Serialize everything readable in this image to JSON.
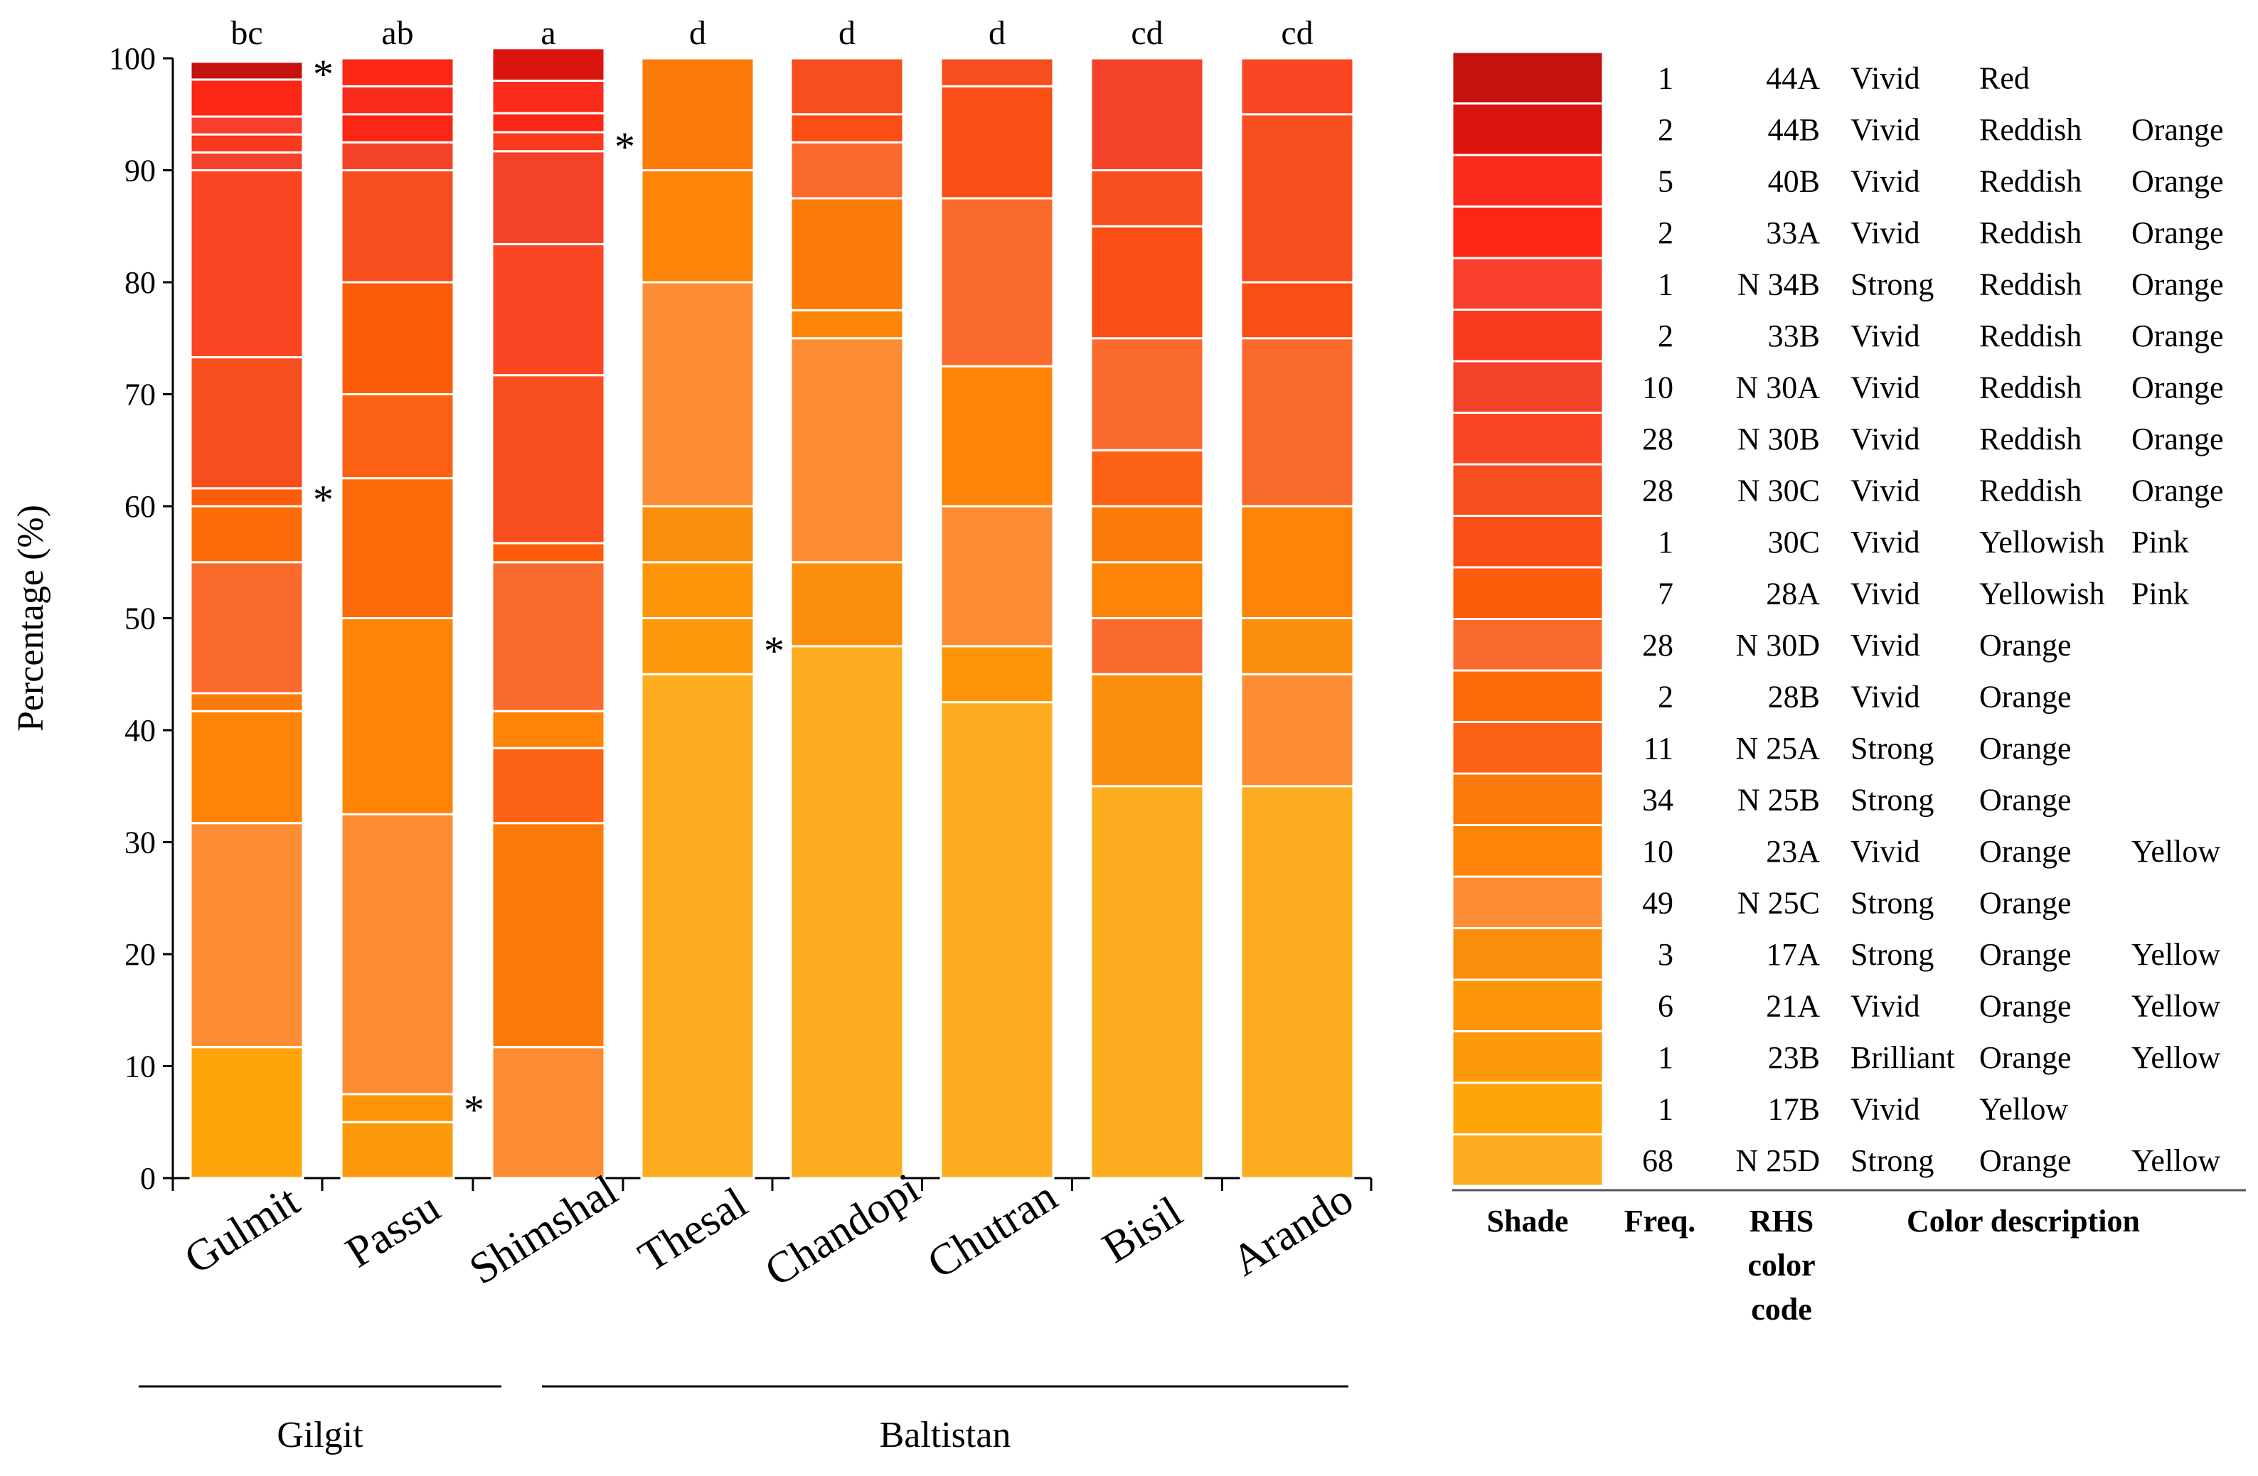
{
  "chart_data": {
    "type": "bar",
    "subtype": "stacked-100-percent",
    "ylabel": "Percentage (%)",
    "ylim": [
      0,
      100
    ],
    "yticks": [
      0,
      10,
      20,
      30,
      40,
      50,
      60,
      70,
      80,
      90,
      100
    ],
    "categories": [
      "Gulmit",
      "Passu",
      "Shimshal",
      "Thesal",
      "Chandopi",
      "Chutran",
      "Bisil",
      "Arando"
    ],
    "significance_letters": [
      "bc",
      "ab",
      "a",
      "d",
      "d",
      "d",
      "cd",
      "cd"
    ],
    "groups": [
      {
        "label": "Gilgit",
        "members": [
          "Gulmit",
          "Passu",
          "Shimshal"
        ]
      },
      {
        "label": "Baltistan",
        "members": [
          "Thesal",
          "Chandopi",
          "Chutran",
          "Bisil",
          "Arando"
        ]
      }
    ],
    "marker": "*",
    "starred_segments": [
      {
        "category": "Gulmit",
        "value_level": 99
      },
      {
        "category": "Gulmit",
        "value_level": 61
      },
      {
        "category": "Passu",
        "value_level": 6.5
      },
      {
        "category": "Shimshal",
        "value_level": 92.5
      },
      {
        "category": "Thesal",
        "value_level": 47.5
      }
    ],
    "bars": [
      {
        "category": "Gulmit",
        "segments": [
          {
            "shade": 20,
            "pct": 11.7
          },
          {
            "shade": 16,
            "pct": 20.0
          },
          {
            "shade": 15,
            "pct": 10.0
          },
          {
            "shade": 14,
            "pct": 1.6
          },
          {
            "shade": 11,
            "pct": 11.7
          },
          {
            "shade": 12,
            "pct": 5.0
          },
          {
            "shade": 10,
            "pct": 1.6
          },
          {
            "shade": 8,
            "pct": 11.7
          },
          {
            "shade": 7,
            "pct": 16.7
          },
          {
            "shade": 6,
            "pct": 1.6
          },
          {
            "shade": 5,
            "pct": 1.6
          },
          {
            "shade": 4,
            "pct": 1.6
          },
          {
            "shade": 3,
            "pct": 3.3
          },
          {
            "shade": 0,
            "pct": 1.6
          }
        ]
      },
      {
        "category": "Passu",
        "segments": [
          {
            "shade": 19,
            "pct": 5.0
          },
          {
            "shade": 18,
            "pct": 2.5
          },
          {
            "shade": 16,
            "pct": 25.0
          },
          {
            "shade": 15,
            "pct": 17.5
          },
          {
            "shade": 12,
            "pct": 12.5
          },
          {
            "shade": 13,
            "pct": 7.5
          },
          {
            "shade": 10,
            "pct": 10.0
          },
          {
            "shade": 8,
            "pct": 10.0
          },
          {
            "shade": 6,
            "pct": 2.5
          },
          {
            "shade": 3,
            "pct": 2.5
          },
          {
            "shade": 2,
            "pct": 2.5
          },
          {
            "shade": 3,
            "pct": 2.5
          }
        ]
      },
      {
        "category": "Shimshal",
        "segments": [
          {
            "shade": 16,
            "pct": 11.7
          },
          {
            "shade": 14,
            "pct": 20.0
          },
          {
            "shade": 13,
            "pct": 6.7
          },
          {
            "shade": 15,
            "pct": 3.3
          },
          {
            "shade": 11,
            "pct": 13.3
          },
          {
            "shade": 10,
            "pct": 1.7
          },
          {
            "shade": 8,
            "pct": 15.0
          },
          {
            "shade": 7,
            "pct": 11.7
          },
          {
            "shade": 6,
            "pct": 8.3
          },
          {
            "shade": 5,
            "pct": 1.7
          },
          {
            "shade": 3,
            "pct": 1.7
          },
          {
            "shade": 2,
            "pct": 2.9
          },
          {
            "shade": 1,
            "pct": 2.9
          }
        ]
      },
      {
        "category": "Thesal",
        "segments": [
          {
            "shade": 21,
            "pct": 45.0
          },
          {
            "shade": 19,
            "pct": 5.0
          },
          {
            "shade": 18,
            "pct": 5.0
          },
          {
            "shade": 17,
            "pct": 5.0
          },
          {
            "shade": 16,
            "pct": 20.0
          },
          {
            "shade": 15,
            "pct": 10.0
          },
          {
            "shade": 14,
            "pct": 10.0
          }
        ]
      },
      {
        "category": "Chandopi",
        "segments": [
          {
            "shade": 21,
            "pct": 47.5
          },
          {
            "shade": 17,
            "pct": 7.5
          },
          {
            "shade": 16,
            "pct": 20.0
          },
          {
            "shade": 15,
            "pct": 2.5
          },
          {
            "shade": 14,
            "pct": 10.0
          },
          {
            "shade": 11,
            "pct": 5.0
          },
          {
            "shade": 9,
            "pct": 2.5
          },
          {
            "shade": 8,
            "pct": 5.0
          }
        ]
      },
      {
        "category": "Chutran",
        "segments": [
          {
            "shade": 21,
            "pct": 42.5
          },
          {
            "shade": 18,
            "pct": 5.0
          },
          {
            "shade": 16,
            "pct": 12.5
          },
          {
            "shade": 15,
            "pct": 12.5
          },
          {
            "shade": 11,
            "pct": 15.0
          },
          {
            "shade": 9,
            "pct": 10.0
          },
          {
            "shade": 8,
            "pct": 2.5
          }
        ]
      },
      {
        "category": "Bisil",
        "segments": [
          {
            "shade": 21,
            "pct": 35.0
          },
          {
            "shade": 17,
            "pct": 10.0
          },
          {
            "shade": 11,
            "pct": 5.0
          },
          {
            "shade": 15,
            "pct": 5.0
          },
          {
            "shade": 14,
            "pct": 5.0
          },
          {
            "shade": 13,
            "pct": 5.0
          },
          {
            "shade": 11,
            "pct": 10.0
          },
          {
            "shade": 9,
            "pct": 10.0
          },
          {
            "shade": 8,
            "pct": 5.0
          },
          {
            "shade": 6,
            "pct": 10.0
          }
        ]
      },
      {
        "category": "Arando",
        "segments": [
          {
            "shade": 21,
            "pct": 35.0
          },
          {
            "shade": 16,
            "pct": 10.0
          },
          {
            "shade": 17,
            "pct": 5.0
          },
          {
            "shade": 15,
            "pct": 10.0
          },
          {
            "shade": 11,
            "pct": 15.0
          },
          {
            "shade": 9,
            "pct": 5.0
          },
          {
            "shade": 8,
            "pct": 15.0
          },
          {
            "shade": 7,
            "pct": 5.0
          }
        ]
      }
    ]
  },
  "legend": {
    "headers": {
      "shade": "Shade",
      "freq": "Freq.",
      "code": [
        "RHS",
        "color",
        "code"
      ],
      "description": "Color description"
    },
    "rows": [
      {
        "freq": "1",
        "code": "44A",
        "desc": [
          "Vivid",
          "Red",
          ""
        ],
        "color": "#c4120f"
      },
      {
        "freq": "2",
        "code": "44B",
        "desc": [
          "Vivid",
          "Reddish",
          "Orange"
        ],
        "color": "#da140f"
      },
      {
        "freq": "5",
        "code": "40B",
        "desc": [
          "Vivid",
          "Reddish",
          "Orange"
        ],
        "color": "#f92b1c"
      },
      {
        "freq": "2",
        "code": "33A",
        "desc": [
          "Vivid",
          "Reddish",
          "Orange"
        ],
        "color": "#fb2614"
      },
      {
        "freq": "1",
        "code": "N 34B",
        "desc": [
          "Strong",
          "Reddish",
          "Orange"
        ],
        "color": "#f73f2b"
      },
      {
        "freq": "2",
        "code": "33B",
        "desc": [
          "Vivid",
          "Reddish",
          "Orange"
        ],
        "color": "#f93a1d"
      },
      {
        "freq": "10",
        "code": "N 30A",
        "desc": [
          "Vivid",
          "Reddish",
          "Orange"
        ],
        "color": "#f4412a"
      },
      {
        "freq": "28",
        "code": "N 30B",
        "desc": [
          "Vivid",
          "Reddish",
          "Orange"
        ],
        "color": "#fa4622"
      },
      {
        "freq": "28",
        "code": "N 30C",
        "desc": [
          "Vivid",
          "Reddish",
          "Orange"
        ],
        "color": "#f64e1d"
      },
      {
        "freq": "1",
        "code": "30C",
        "desc": [
          "Vivid",
          "Yellowish",
          "Pink"
        ],
        "color": "#fb4e14"
      },
      {
        "freq": "7",
        "code": "28A",
        "desc": [
          "Vivid",
          "Yellowish",
          "Pink"
        ],
        "color": "#fc5d0a"
      },
      {
        "freq": "28",
        "code": "N 30D",
        "desc": [
          "Vivid",
          "Orange",
          ""
        ],
        "color": "#fb6a2d"
      },
      {
        "freq": "2",
        "code": "28B",
        "desc": [
          "Vivid",
          "Orange",
          ""
        ],
        "color": "#fc6c0b"
      },
      {
        "freq": "11",
        "code": "N 25A",
        "desc": [
          "Strong",
          "Orange",
          ""
        ],
        "color": "#fd6113"
      },
      {
        "freq": "34",
        "code": "N 25B",
        "desc": [
          "Strong",
          "Orange",
          ""
        ],
        "color": "#fc7a07"
      },
      {
        "freq": "10",
        "code": "23A",
        "desc": [
          "Vivid",
          "Orange",
          "Yellow"
        ],
        "color": "#fd8406"
      },
      {
        "freq": "49",
        "code": "N 25C",
        "desc": [
          "Strong",
          "Orange",
          ""
        ],
        "color": "#fd8d34"
      },
      {
        "freq": "3",
        "code": "17A",
        "desc": [
          "Strong",
          "Orange",
          "Yellow"
        ],
        "color": "#fc8e0d"
      },
      {
        "freq": "6",
        "code": "21A",
        "desc": [
          "Vivid",
          "Orange",
          "Yellow"
        ],
        "color": "#fd9509"
      },
      {
        "freq": "1",
        "code": "23B",
        "desc": [
          "Brilliant",
          "Orange",
          "Yellow"
        ],
        "color": "#fc9a0b"
      },
      {
        "freq": "1",
        "code": "17B",
        "desc": [
          "Vivid",
          "Yellow",
          ""
        ],
        "color": "#ffa50a"
      },
      {
        "freq": "68",
        "code": "N 25D",
        "desc": [
          "Strong",
          "Orange",
          "Yellow"
        ],
        "color": "#fcac1e"
      }
    ]
  }
}
